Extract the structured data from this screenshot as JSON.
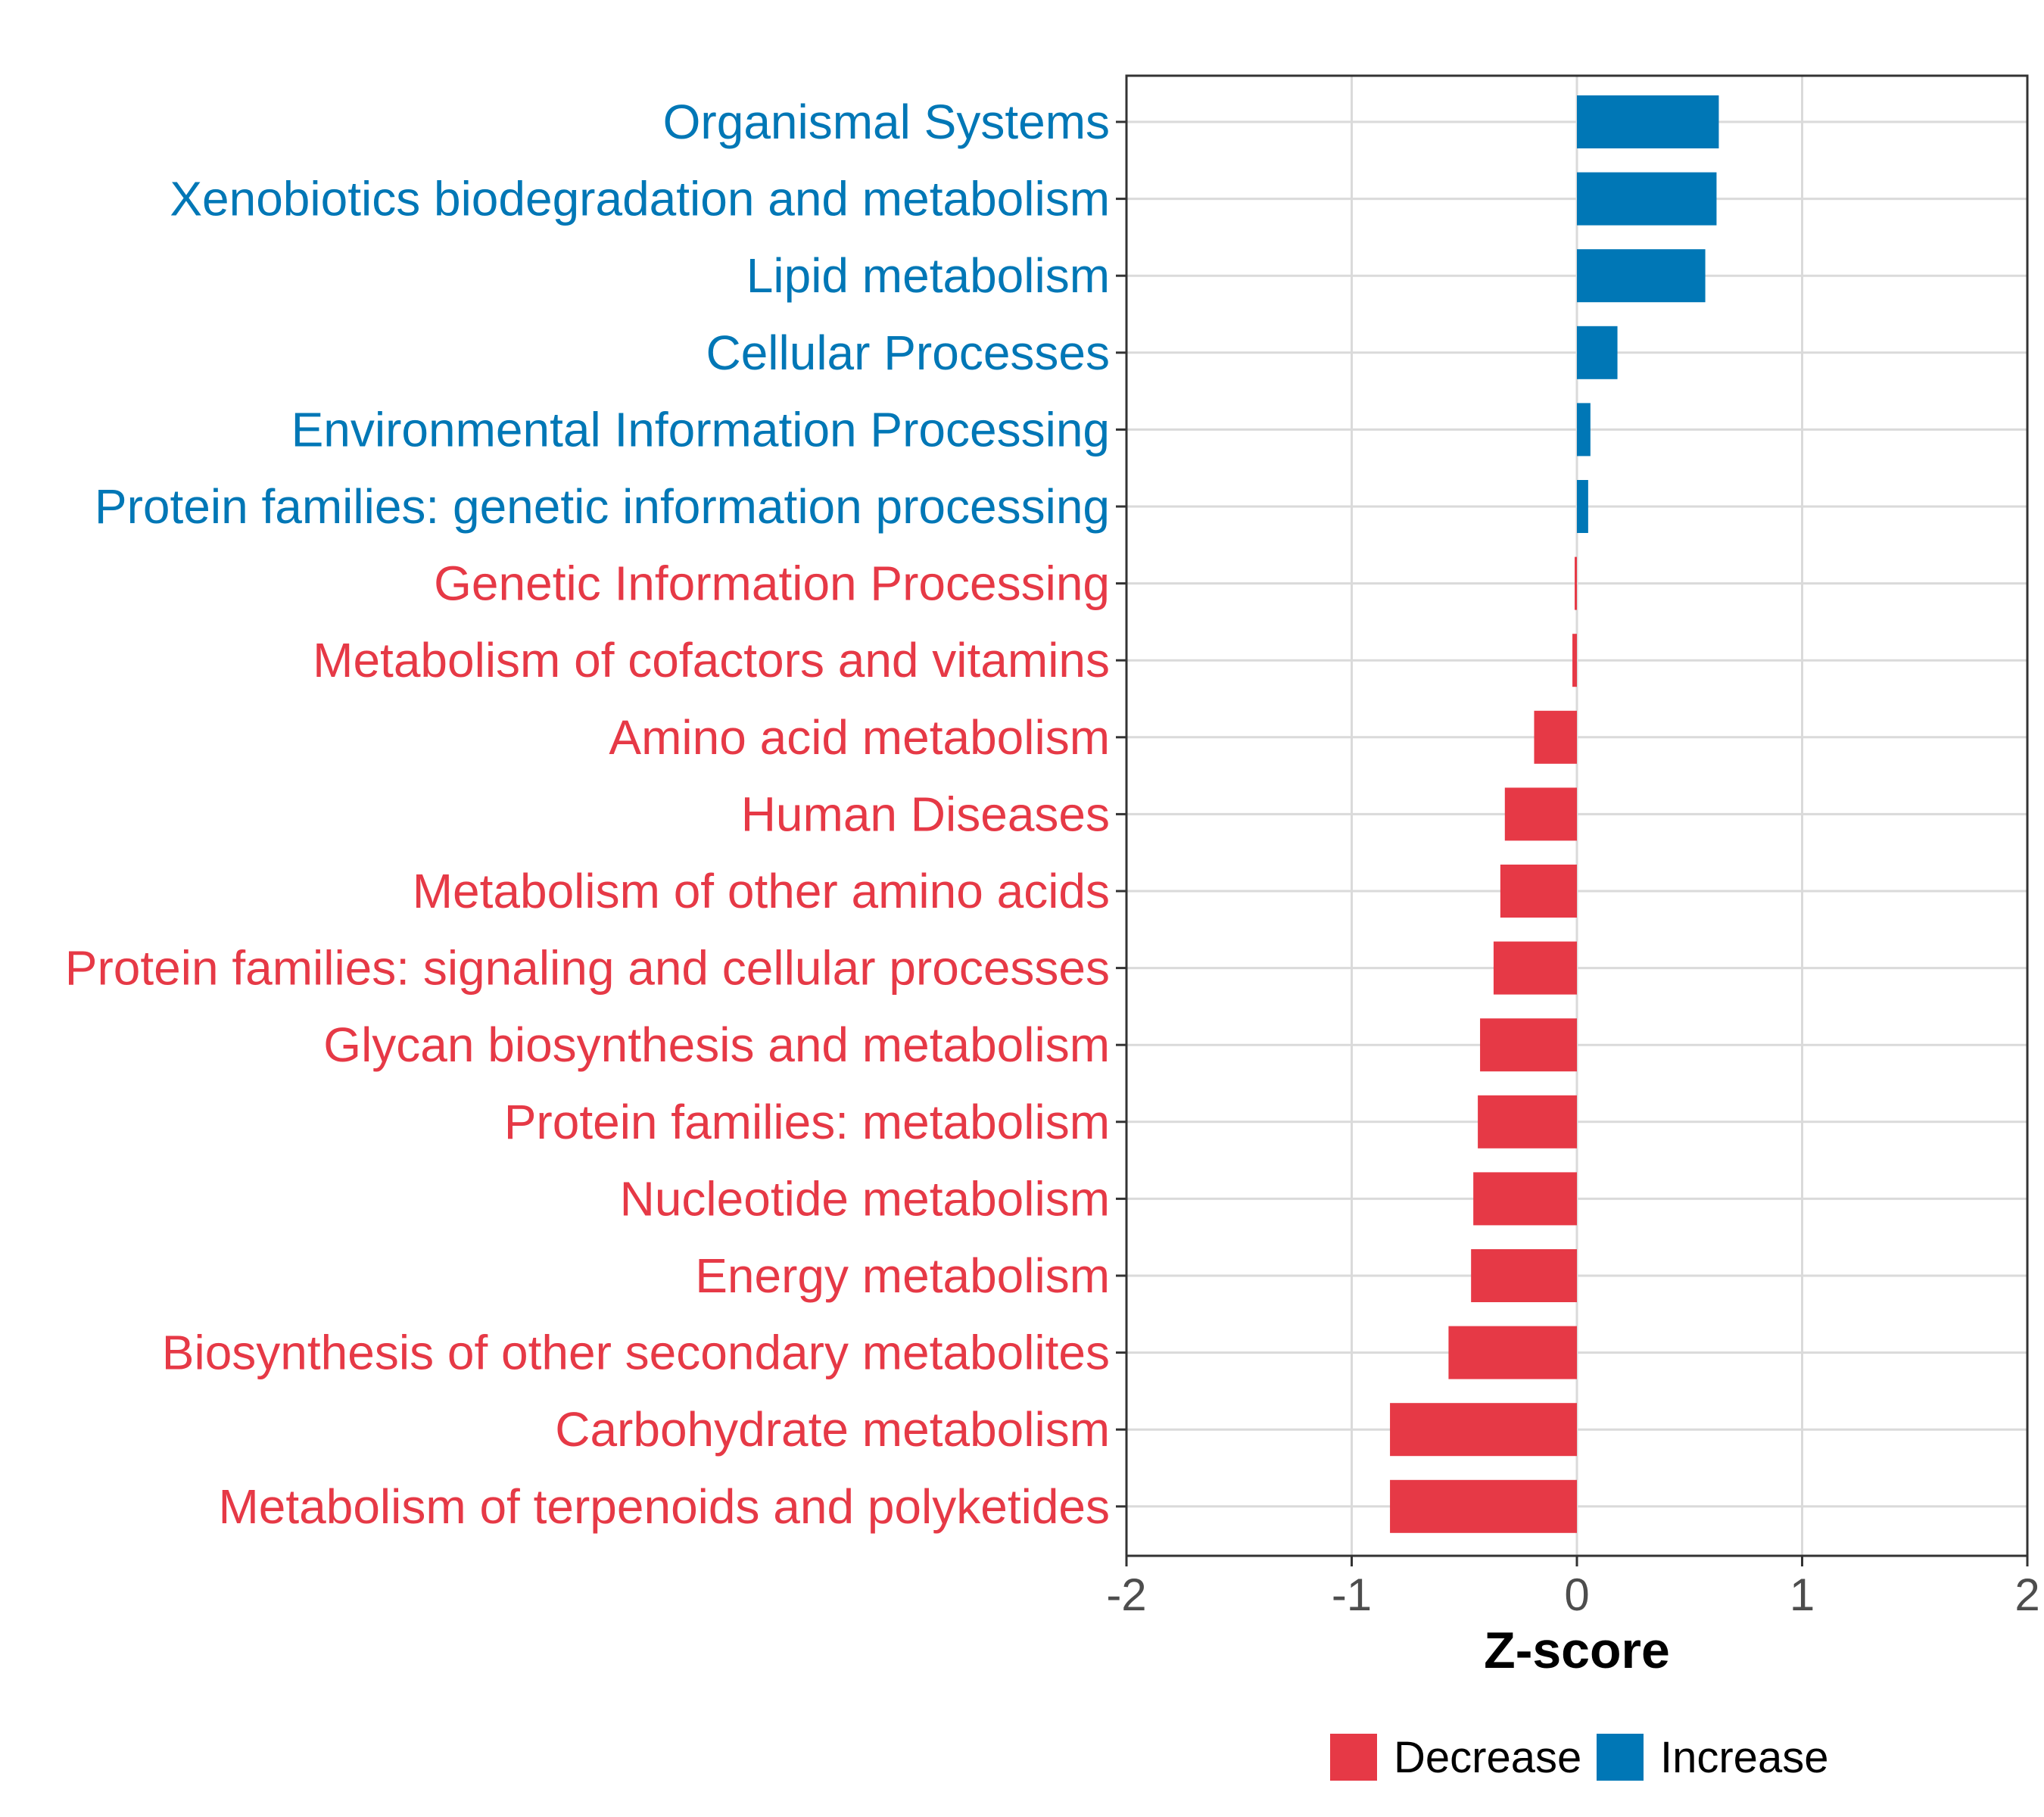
{
  "chart_data": {
    "type": "bar",
    "orientation": "horizontal",
    "title": "",
    "xlabel": "Z-score",
    "ylabel": "",
    "xlim": [
      -2,
      2
    ],
    "xticks": [
      -2,
      -1,
      0,
      1,
      2
    ],
    "xtick_labels": [
      "-2",
      "-1",
      "0",
      "1",
      "2"
    ],
    "grid": true,
    "legend_position": "bottom",
    "legend": [
      {
        "name": "Decrease",
        "color": "#E63946"
      },
      {
        "name": "Increase",
        "color": "#0077B6"
      }
    ],
    "categories": [
      "Organismal Systems",
      "Xenobiotics biodegradation and metabolism",
      "Lipid metabolism",
      "Cellular Processes",
      "Environmental Information Processing",
      "Protein families: genetic information processing",
      "Genetic Information Processing",
      "Metabolism of cofactors and vitamins",
      "Amino acid metabolism",
      "Human Diseases",
      "Metabolism of other amino acids",
      "Protein families: signaling and cellular processes",
      "Glycan biosynthesis and metabolism",
      "Protein families: metabolism",
      "Nucleotide metabolism",
      "Energy metabolism",
      "Biosynthesis of other secondary metabolites",
      "Carbohydrate metabolism",
      "Metabolism of terpenoids and polyketides"
    ],
    "values": [
      0.63,
      0.62,
      0.57,
      0.18,
      0.06,
      0.05,
      -0.01,
      -0.02,
      -0.19,
      -0.32,
      -0.34,
      -0.37,
      -0.43,
      -0.44,
      -0.46,
      -0.47,
      -0.57,
      -0.83,
      -0.83
    ],
    "groups": [
      "Increase",
      "Increase",
      "Increase",
      "Increase",
      "Increase",
      "Increase",
      "Decrease",
      "Decrease",
      "Decrease",
      "Decrease",
      "Decrease",
      "Decrease",
      "Decrease",
      "Decrease",
      "Decrease",
      "Decrease",
      "Decrease",
      "Decrease",
      "Decrease"
    ]
  }
}
